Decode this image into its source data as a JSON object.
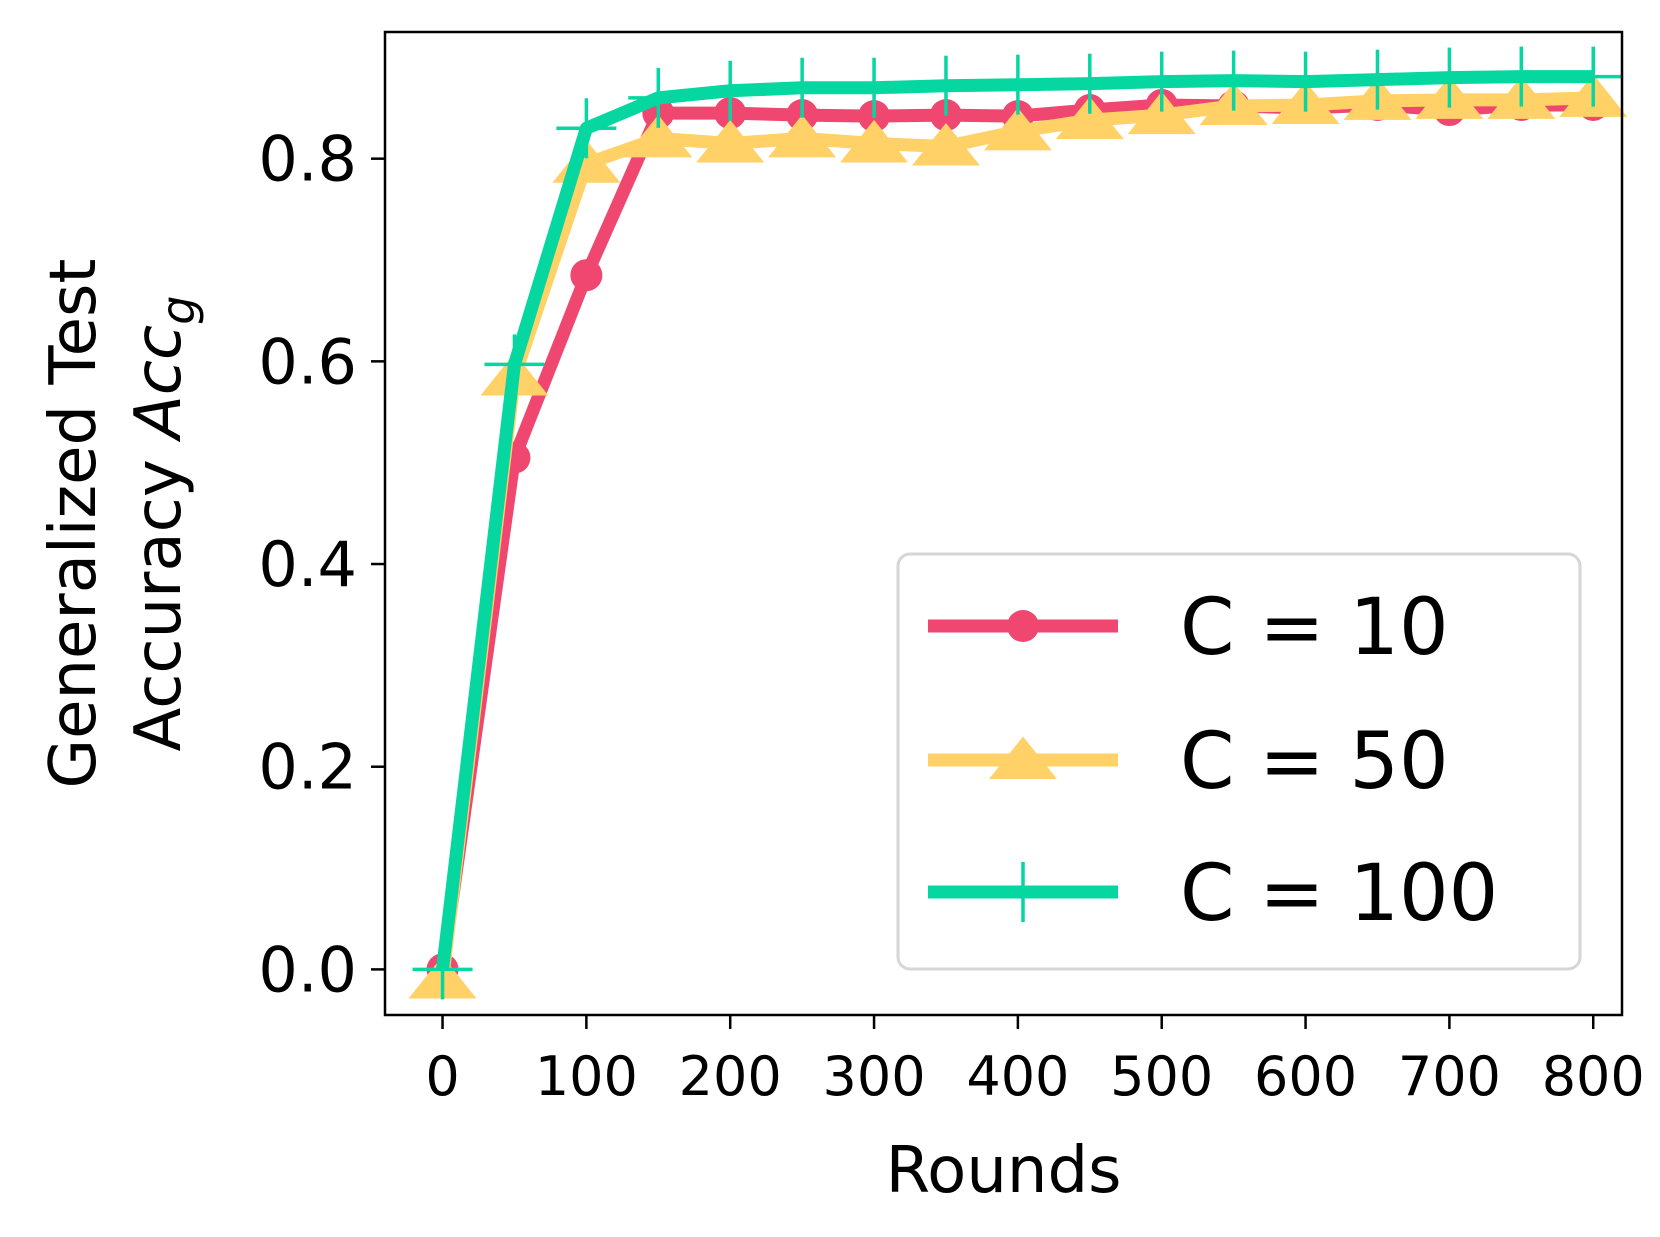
{
  "chart_data": {
    "type": "line",
    "xlabel": "Rounds",
    "ylabel_line1": "Generalized Test",
    "ylabel_line2_prefix": "Accuracy ",
    "ylabel_math": "Acc",
    "ylabel_math_sub": "g",
    "xlim": [
      -40,
      820
    ],
    "ylim": [
      -0.045,
      0.925
    ],
    "xticks": [
      0,
      100,
      200,
      300,
      400,
      500,
      600,
      700,
      800
    ],
    "xtick_labels": [
      "0",
      "100",
      "200",
      "300",
      "400",
      "500",
      "600",
      "700",
      "800"
    ],
    "yticks": [
      0.0,
      0.2,
      0.4,
      0.6,
      0.8
    ],
    "ytick_labels": [
      "0.0",
      "0.2",
      "0.4",
      "0.6",
      "0.8"
    ],
    "x": [
      0,
      50,
      100,
      150,
      200,
      250,
      300,
      350,
      400,
      450,
      500,
      550,
      600,
      650,
      700,
      750,
      800
    ],
    "series": [
      {
        "name": "C = 10",
        "color": "#ef476f",
        "marker": "circle",
        "values": [
          0.0,
          0.505,
          0.685,
          0.845,
          0.845,
          0.843,
          0.842,
          0.843,
          0.842,
          0.848,
          0.853,
          0.852,
          0.85,
          0.853,
          0.848,
          0.853,
          0.853
        ]
      },
      {
        "name": "C = 50",
        "color": "#ffd166",
        "marker": "triangle",
        "values": [
          -0.01,
          0.585,
          0.795,
          0.82,
          0.815,
          0.82,
          0.815,
          0.812,
          0.827,
          0.838,
          0.843,
          0.852,
          0.853,
          0.857,
          0.858,
          0.858,
          0.86
        ]
      },
      {
        "name": "C = 100",
        "color": "#06d6a0",
        "marker": "plus",
        "values": [
          0.0,
          0.597,
          0.83,
          0.86,
          0.867,
          0.87,
          0.87,
          0.872,
          0.873,
          0.874,
          0.876,
          0.877,
          0.876,
          0.878,
          0.88,
          0.881,
          0.881
        ]
      }
    ],
    "legend_position": "lower-right",
    "grid": false
  }
}
